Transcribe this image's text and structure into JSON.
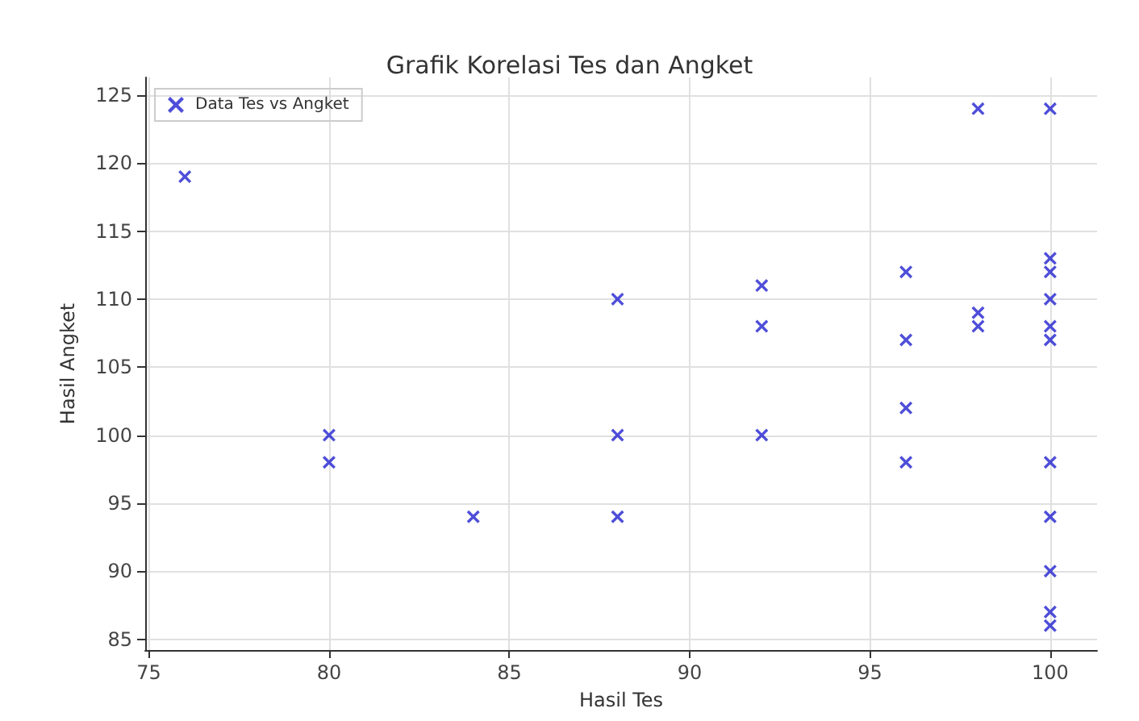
{
  "chart_data": {
    "type": "scatter",
    "title": "Grafik Korelasi Tes dan Angket",
    "xlabel": "Hasil Tes",
    "ylabel": "Hasil Angket",
    "series": [
      {
        "name": "Data Tes vs Angket",
        "color": "#2222d0",
        "x": [
          76,
          80,
          80,
          84,
          88,
          88,
          88,
          92,
          92,
          92,
          96,
          96,
          96,
          96,
          98,
          98,
          98,
          100,
          100,
          100,
          100,
          100,
          100,
          100,
          100,
          100,
          100,
          100
        ],
        "values": [
          119,
          100,
          98,
          94,
          110,
          100,
          94,
          111,
          108,
          100,
          112,
          107,
          102,
          98,
          124,
          109,
          108,
          124,
          113,
          112,
          110,
          108,
          107,
          98,
          94,
          90,
          87,
          86
        ]
      }
    ],
    "xlim": [
      74.9,
      101.3
    ],
    "xticks": [
      75,
      80,
      85,
      90,
      95,
      100
    ],
    "ylim": [
      84.2,
      126.3
    ],
    "yticks": [
      85,
      90,
      95,
      100,
      105,
      110,
      115,
      120,
      125
    ],
    "grid": true,
    "legend": "top left",
    "marker": "cross"
  }
}
